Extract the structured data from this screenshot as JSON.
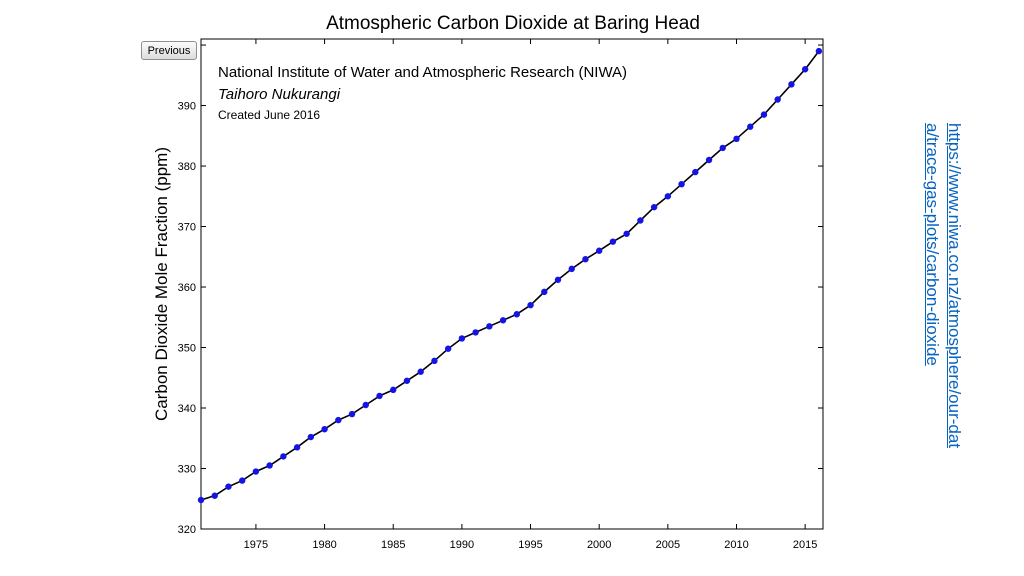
{
  "previous_button": {
    "label": "Previous"
  },
  "source_link": {
    "text": "https://www.niwa.co.nz/atmosphere/our-data/trace-gas-plots/carbon-dioxide"
  },
  "colors": {
    "observations": "#1414e6",
    "trend": "#000000",
    "link": "#0563c1"
  },
  "chart_data": {
    "type": "scatter",
    "title": "Atmospheric Carbon Dioxide at Baring Head",
    "ylabel": "Carbon Dioxide Mole Fraction (ppm)",
    "xlabel": "",
    "annotations": [
      "National Institute of Water and Atmospheric Research (NIWA)",
      "Taihoro Nukurangi",
      "Created June 2016"
    ],
    "xlim": [
      1971,
      2016.3
    ],
    "ylim": [
      320,
      401
    ],
    "xticks": [
      1975,
      1980,
      1985,
      1990,
      1995,
      2000,
      2005,
      2010,
      2015
    ],
    "yticks": [
      320,
      330,
      340,
      350,
      360,
      370,
      380,
      390,
      400
    ],
    "grid": false,
    "series": [
      {
        "style": "points",
        "x": [
          1971.0,
          1972.0,
          1973.0,
          1974.0,
          1975.0,
          1976.0,
          1977.0,
          1978.0,
          1979.0,
          1980.0,
          1981.0,
          1982.0,
          1983.0,
          1984.0,
          1985.0,
          1986.0,
          1987.0,
          1988.0,
          1989.0,
          1990.0,
          1991.0,
          1992.0,
          1993.0,
          1994.0,
          1995.0,
          1996.0,
          1997.0,
          1998.0,
          1999.0,
          2000.0,
          2001.0,
          2002.0,
          2003.0,
          2004.0,
          2005.0,
          2006.0,
          2007.0,
          2008.0,
          2009.0,
          2010.0,
          2011.0,
          2012.0,
          2013.0,
          2014.0,
          2015.0,
          2016.0
        ],
        "y": [
          324.8,
          325.5,
          327.0,
          328.0,
          329.5,
          330.5,
          332.0,
          333.5,
          335.2,
          336.5,
          338.0,
          339.0,
          340.5,
          342.0,
          343.0,
          344.5,
          346.0,
          347.8,
          349.8,
          351.5,
          352.5,
          353.5,
          354.5,
          355.5,
          357.0,
          359.2,
          361.2,
          363.0,
          364.6,
          366.0,
          367.5,
          368.8,
          371.0,
          373.2,
          375.0,
          377.0,
          379.0,
          381.0,
          383.0,
          384.5,
          386.5,
          388.5,
          391.0,
          393.5,
          396.0,
          399.0
        ]
      },
      {
        "style": "trend-line",
        "x": [
          1971.0,
          1972.0,
          1973.0,
          1974.0,
          1975.0,
          1976.0,
          1977.0,
          1978.0,
          1979.0,
          1980.0,
          1981.0,
          1982.0,
          1983.0,
          1984.0,
          1985.0,
          1986.0,
          1987.0,
          1988.0,
          1989.0,
          1990.0,
          1991.0,
          1992.0,
          1993.0,
          1994.0,
          1995.0,
          1996.0,
          1997.0,
          1998.0,
          1999.0,
          2000.0,
          2001.0,
          2002.0,
          2003.0,
          2004.0,
          2005.0,
          2006.0,
          2007.0,
          2008.0,
          2009.0,
          2010.0,
          2011.0,
          2012.0,
          2013.0,
          2014.0,
          2015.0,
          2016.0
        ],
        "y": [
          324.8,
          325.5,
          327.0,
          328.0,
          329.5,
          330.5,
          332.0,
          333.5,
          335.2,
          336.5,
          338.0,
          339.0,
          340.5,
          342.0,
          343.0,
          344.5,
          346.0,
          347.8,
          349.8,
          351.5,
          352.5,
          353.5,
          354.5,
          355.5,
          357.0,
          359.2,
          361.2,
          363.0,
          364.6,
          366.0,
          367.5,
          368.8,
          371.0,
          373.2,
          375.0,
          377.0,
          379.0,
          381.0,
          383.0,
          384.5,
          386.5,
          388.5,
          391.0,
          393.5,
          396.0,
          399.0
        ]
      }
    ]
  }
}
